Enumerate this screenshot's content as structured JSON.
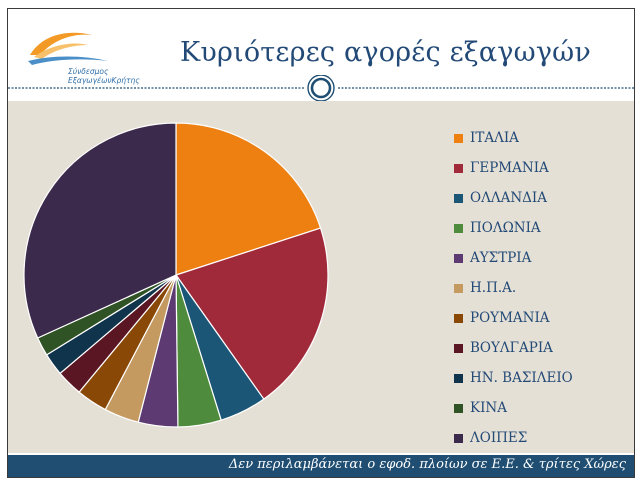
{
  "logo": {
    "text_line1": "Σύνδεσμος",
    "text_line2": "ΕξαγωγέωνΚρήτης"
  },
  "title": "Κυριότερες αγορές εξαγωγών",
  "footer_note": "Δεν περιλαμβάνεται ο εφοδ. πλοίων σε Ε.Ε. & τρίτες Χώρες",
  "colors": {
    "header_title": "#234a77",
    "divider": "#1f4e72",
    "plot_background": "#e5e0d6",
    "footer_band": "#1f4e72"
  },
  "chart_data": {
    "type": "pie",
    "legend_position": "right",
    "unit": "percent",
    "slices": [
      {
        "label": "ΙΤΑΛΙΑ",
        "value": 20.0,
        "color": "#ee8012"
      },
      {
        "label": "ΓΕΡΜΑΝΙΑ",
        "value": 20.2,
        "color": "#a12a3a"
      },
      {
        "label": "ΟΛΛΑΝΔΙΑ",
        "value": 5.0,
        "color": "#1b5677"
      },
      {
        "label": "ΠΟΛΩΝΙΑ",
        "value": 4.6,
        "color": "#4f8b3c"
      },
      {
        "label": "ΑΥΣΤΡΙΑ",
        "value": 4.2,
        "color": "#5d3b72"
      },
      {
        "label": "Η.Π.Α.",
        "value": 3.7,
        "color": "#c49a61"
      },
      {
        "label": "ΡΟΥΜΑΝΙΑ",
        "value": 3.3,
        "color": "#8a4807"
      },
      {
        "label": "ΒΟΥΛΓΑΡΙΑ",
        "value": 2.8,
        "color": "#5a1623"
      },
      {
        "label": "ΗΝ. ΒΑΣΙΛΕΙΟ",
        "value": 2.4,
        "color": "#10344c"
      },
      {
        "label": "ΚΙΝΑ",
        "value": 2.0,
        "color": "#2f5325"
      },
      {
        "label": "ΛΟΙΠΕΣ",
        "value": 31.8,
        "color": "#3b2a4b"
      }
    ]
  }
}
